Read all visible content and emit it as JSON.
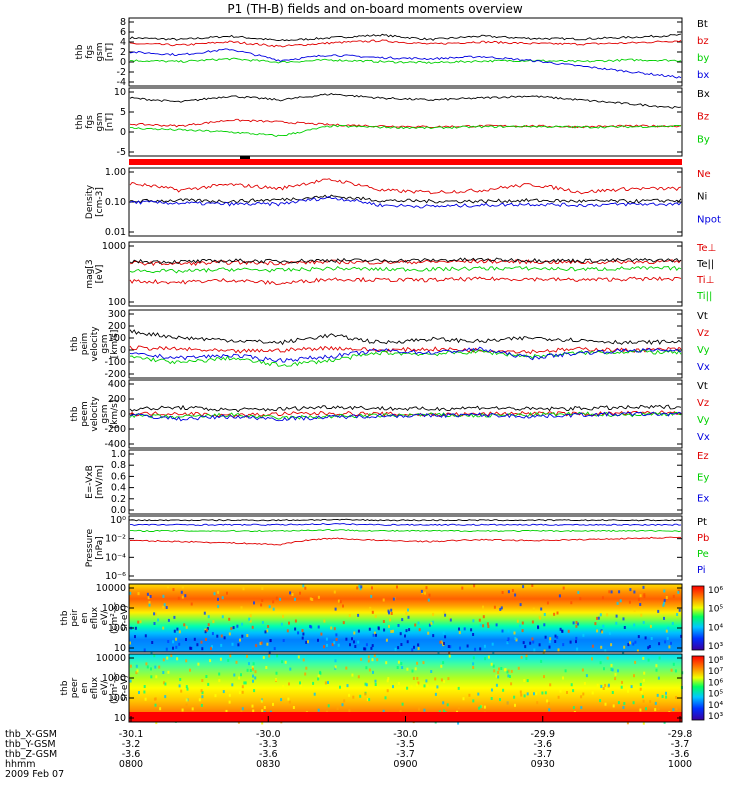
{
  "title": "P1 (TH-B) fields and on-board moments overview",
  "colors": {
    "black": "#000000",
    "red": "#e00000",
    "green": "#00d000",
    "blue": "#0000e0"
  },
  "panels": [
    {
      "id": "fgs-gsm",
      "ylabel": [
        "thb",
        "fgs",
        "gsm",
        "[nT]"
      ],
      "ylim": [
        -4,
        8
      ],
      "log": false,
      "ticks": [
        "8",
        "6",
        "4",
        "2",
        "0",
        "-2",
        "-4"
      ],
      "legend": [
        {
          "name": "Bt",
          "color": "black"
        },
        {
          "name": "bz",
          "color": "red"
        },
        {
          "name": "by",
          "color": "green"
        },
        {
          "name": "bx",
          "color": "blue"
        }
      ]
    },
    {
      "id": "fgs-gse",
      "ylabel": [
        "thb",
        "fgs",
        "gsm",
        "[nT]"
      ],
      "ylim": [
        -7,
        10
      ],
      "log": false,
      "ticks": [
        "10",
        "5",
        "0",
        "-5"
      ],
      "legend": [
        {
          "name": "Bx",
          "color": "black"
        },
        {
          "name": "Bz",
          "color": "red"
        },
        {
          "name": "By",
          "color": "green"
        }
      ]
    },
    {
      "id": "density",
      "ylabel": [
        "Density",
        "[cm-3]"
      ],
      "ylim": [
        0.01,
        2
      ],
      "log": true,
      "ticks": [
        "1.00",
        "0.10",
        "0.01"
      ],
      "legend": [
        {
          "name": "Ne",
          "color": "red"
        },
        {
          "name": "Ni",
          "color": "black"
        },
        {
          "name": "Npot",
          "color": "blue"
        }
      ]
    },
    {
      "id": "temperature",
      "ylabel": [
        "mag[3",
        "[eV]"
      ],
      "ylim": [
        100,
        10000
      ],
      "log": true,
      "ticks": [
        "1000",
        "100"
      ],
      "legend": [
        {
          "name": "Te⊥",
          "color": "red"
        },
        {
          "name": "Te||",
          "color": "black"
        },
        {
          "name": "Ti⊥",
          "color": "red"
        },
        {
          "name": "Ti||",
          "color": "green"
        }
      ]
    },
    {
      "id": "peim-velocity",
      "ylabel": [
        "thb",
        "peim",
        "velocity",
        "gsm",
        "[km/s]"
      ],
      "ylim": [
        -220,
        320
      ],
      "log": false,
      "ticks": [
        "300",
        "200",
        "100",
        "0",
        "-100",
        "-200"
      ],
      "legend": [
        {
          "name": "Vt",
          "color": "black"
        },
        {
          "name": "Vz",
          "color": "red"
        },
        {
          "name": "Vy",
          "color": "green"
        },
        {
          "name": "Vx",
          "color": "blue"
        }
      ]
    },
    {
      "id": "peem-velocity",
      "ylabel": [
        "thb",
        "peem",
        "velocity",
        "gsm",
        "[km/s]"
      ],
      "ylim": [
        -420,
        420
      ],
      "log": false,
      "ticks": [
        "400",
        "200",
        "0",
        "-200",
        "-400"
      ],
      "legend": [
        {
          "name": "Vt",
          "color": "black"
        },
        {
          "name": "Vz",
          "color": "red"
        },
        {
          "name": "Vy",
          "color": "green"
        },
        {
          "name": "Vx",
          "color": "blue"
        }
      ]
    },
    {
      "id": "efield",
      "ylabel": [
        "E=-VxB",
        "[mV/m]"
      ],
      "ylim": [
        0,
        1
      ],
      "log": false,
      "ticks": [
        "1.0",
        "0.8",
        "0.6",
        "0.4",
        "0.2",
        "0.0"
      ],
      "legend": [
        {
          "name": "Ez",
          "color": "red"
        },
        {
          "name": "Ey",
          "color": "green"
        },
        {
          "name": "Ex",
          "color": "blue"
        }
      ]
    },
    {
      "id": "pressure",
      "ylabel": [
        "Pressure",
        "[nPa]"
      ],
      "ylim": [
        1e-06,
        1
      ],
      "log": true,
      "ticks": [
        "10⁰",
        "10⁻²",
        "10⁻⁴",
        "10⁻⁶"
      ],
      "legend": [
        {
          "name": "Pt",
          "color": "black"
        },
        {
          "name": "Pb",
          "color": "red"
        },
        {
          "name": "Pe",
          "color": "green"
        },
        {
          "name": "Pi",
          "color": "blue"
        }
      ]
    },
    {
      "id": "peir-spectrogram",
      "ylabel": [
        "thb",
        "peir",
        "en",
        "eflux",
        "eV/",
        "(cm²-s-",
        "sr-eV)"
      ],
      "ylim": [
        5,
        30000
      ],
      "log": true,
      "ticks": [
        "10000",
        "1000",
        "100",
        "10"
      ],
      "colorbar": [
        "10⁶",
        "10⁵",
        "10⁴",
        "10³"
      ]
    },
    {
      "id": "peer-spectrogram",
      "ylabel": [
        "thb",
        "peer",
        "en",
        "eflux",
        "eV/",
        "(cm²-s-",
        "sr-eV)"
      ],
      "ylim": [
        5,
        30000
      ],
      "log": true,
      "ticks": [
        "10000",
        "1000",
        "100",
        "10"
      ],
      "colorbar": [
        "10⁸",
        "10⁷",
        "10⁶",
        "10⁵",
        "10⁴",
        "10³"
      ]
    }
  ],
  "chart_data": {
    "type": "line",
    "title": "P1 (TH-B) fields and on-board moments overview",
    "date": "2009 Feb 07",
    "x_ticks": [
      "0800",
      "0830",
      "0900",
      "0930",
      "1000"
    ],
    "xlim": [
      "08:00",
      "10:00"
    ],
    "ephemeris": [
      {
        "label": "thb_X-GSM",
        "values": [
          "-30.1",
          "-30.0",
          "-30.0",
          "-29.9",
          "-29.8"
        ]
      },
      {
        "label": "thb_Y-GSM",
        "values": [
          "-3.2",
          "-3.3",
          "-3.5",
          "-3.6",
          "-3.7"
        ]
      },
      {
        "label": "thb_Z-GSM",
        "values": [
          "-3.6",
          "-3.6",
          "-3.7",
          "-3.7",
          "-3.6"
        ]
      },
      {
        "label": "hhmm",
        "values": [
          "0800",
          "0830",
          "0900",
          "0930",
          "1000"
        ]
      }
    ],
    "approx_series": [
      {
        "panel": "fgs-gsm",
        "name": "Bt",
        "values": [
          4.5,
          4.2,
          4.8,
          4.0,
          4.5,
          5.0,
          4.2,
          4.8,
          4.4,
          4.3,
          4.6,
          5.0
        ]
      },
      {
        "panel": "fgs-gsm",
        "name": "bz",
        "values": [
          3.5,
          3.2,
          3.8,
          3.0,
          3.6,
          4.0,
          3.4,
          3.8,
          3.5,
          3.4,
          3.6,
          4.0
        ]
      },
      {
        "panel": "fgs-gsm",
        "name": "by",
        "values": [
          0.5,
          0.3,
          0.8,
          0.2,
          0.6,
          0.3,
          0.1,
          0.4,
          0.5,
          0.3,
          0.6,
          0.5
        ]
      },
      {
        "panel": "fgs-gsm",
        "name": "bx",
        "values": [
          2.0,
          1.5,
          2.5,
          0.5,
          1.5,
          1.0,
          0.8,
          1.2,
          0.5,
          -0.5,
          -1.5,
          -2.5
        ]
      },
      {
        "panel": "fgs-gse",
        "name": "Bx",
        "values": [
          7.5,
          6.5,
          8.0,
          7.0,
          8.5,
          7.5,
          7.0,
          7.5,
          8.0,
          7.0,
          6.0,
          5.0
        ]
      },
      {
        "panel": "fgs-gse",
        "name": "Bz",
        "values": [
          1.0,
          0.5,
          2.0,
          1.5,
          0.8,
          0.5,
          0.3,
          0.5,
          0.5,
          0.3,
          0.5,
          0.5
        ]
      },
      {
        "panel": "fgs-gse",
        "name": "By",
        "values": [
          0.0,
          -0.5,
          -1.0,
          -2.0,
          0.5,
          0.2,
          0.0,
          0.3,
          0.4,
          0.2,
          0.3,
          0.5
        ]
      },
      {
        "panel": "density",
        "name": "Ne",
        "values": [
          0.6,
          0.35,
          0.55,
          0.4,
          0.8,
          0.35,
          0.3,
          0.35,
          0.55,
          0.3,
          0.4,
          0.4
        ]
      },
      {
        "panel": "density",
        "name": "Ni",
        "values": [
          0.15,
          0.16,
          0.15,
          0.17,
          0.22,
          0.16,
          0.15,
          0.15,
          0.16,
          0.15,
          0.15,
          0.16
        ]
      },
      {
        "panel": "density",
        "name": "Npot",
        "values": [
          0.14,
          0.13,
          0.12,
          0.12,
          0.2,
          0.11,
          0.1,
          0.11,
          0.12,
          0.11,
          0.12,
          0.12
        ]
      },
      {
        "panel": "temperature",
        "name": "Te⊥",
        "values": [
          2200,
          2100,
          2300,
          2200,
          2400,
          2300,
          2400,
          2500,
          2400,
          2300,
          2400,
          2400
        ]
      },
      {
        "panel": "temperature",
        "name": "Te||",
        "values": [
          2500,
          2400,
          2600,
          2500,
          2700,
          2600,
          2700,
          2800,
          2700,
          2600,
          2700,
          2700
        ]
      },
      {
        "panel": "temperature",
        "name": "Ti⊥",
        "values": [
          600,
          550,
          650,
          500,
          700,
          650,
          650,
          700,
          700,
          650,
          700,
          700
        ]
      },
      {
        "panel": "temperature",
        "name": "Ti||",
        "values": [
          1300,
          1200,
          1400,
          1300,
          1500,
          1400,
          1400,
          1500,
          1500,
          1400,
          1500,
          1500
        ]
      },
      {
        "panel": "peim-velocity",
        "name": "Vt",
        "values": [
          150,
          100,
          80,
          60,
          120,
          60,
          90,
          70,
          100,
          80,
          60,
          70
        ]
      },
      {
        "panel": "peim-velocity",
        "name": "Vz",
        "values": [
          20,
          10,
          -10,
          0,
          20,
          0,
          10,
          0,
          -10,
          10,
          0,
          10
        ]
      },
      {
        "panel": "peim-velocity",
        "name": "Vy",
        "values": [
          -50,
          -100,
          -60,
          -120,
          -80,
          -20,
          -30,
          -10,
          -50,
          -20,
          -10,
          -20
        ]
      },
      {
        "panel": "peim-velocity",
        "name": "Vx",
        "values": [
          -30,
          -60,
          -40,
          -80,
          -50,
          0,
          -20,
          10,
          -60,
          -20,
          0,
          0
        ]
      },
      {
        "panel": "peem-velocity",
        "name": "Vt",
        "values": [
          60,
          80,
          50,
          60,
          90,
          70,
          60,
          80,
          60,
          70,
          80,
          90
        ]
      },
      {
        "panel": "peem-velocity",
        "name": "Vz",
        "values": [
          0,
          10,
          -20,
          0,
          10,
          0,
          -10,
          0,
          10,
          0,
          10,
          20
        ]
      },
      {
        "panel": "peem-velocity",
        "name": "Vy",
        "values": [
          -20,
          -40,
          -10,
          -50,
          -30,
          -20,
          -10,
          -20,
          -10,
          0,
          -10,
          10
        ]
      },
      {
        "panel": "peem-velocity",
        "name": "Vx",
        "values": [
          -10,
          -60,
          -30,
          -60,
          -40,
          -20,
          -20,
          -10,
          -30,
          -10,
          0,
          0
        ]
      },
      {
        "panel": "pressure",
        "name": "Pt",
        "values": [
          0.4,
          0.4,
          0.4,
          0.4,
          0.45,
          0.4,
          0.4,
          0.4,
          0.4,
          0.4,
          0.4,
          0.4
        ]
      },
      {
        "panel": "pressure",
        "name": "Pb",
        "values": [
          0.005,
          0.004,
          0.003,
          0.002,
          0.008,
          0.005,
          0.004,
          0.006,
          0.005,
          0.006,
          0.008,
          0.01
        ]
      },
      {
        "panel": "pressure",
        "name": "Pe",
        "values": [
          0.04,
          0.04,
          0.04,
          0.04,
          0.05,
          0.04,
          0.04,
          0.04,
          0.04,
          0.04,
          0.04,
          0.04
        ]
      },
      {
        "panel": "pressure",
        "name": "Pi",
        "values": [
          0.15,
          0.15,
          0.15,
          0.15,
          0.18,
          0.15,
          0.15,
          0.15,
          0.15,
          0.15,
          0.15,
          0.15
        ]
      }
    ]
  }
}
